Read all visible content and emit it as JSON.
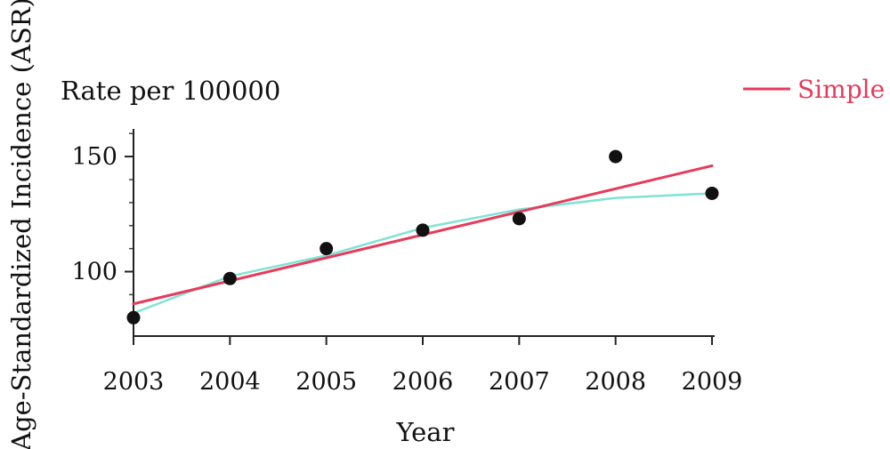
{
  "chart_data": {
    "type": "scatter",
    "subtitle": "Rate per 100000",
    "xlabel": "Year",
    "ylabel": "Age-Standardized Incidence (ASR)",
    "x": [
      2003,
      2004,
      2005,
      2006,
      2007,
      2008,
      2009
    ],
    "xlim": [
      2003,
      2009
    ],
    "ylim": [
      72,
      162
    ],
    "y_ticks": [
      100,
      150
    ],
    "x_tick_labels": [
      "2003",
      "2004",
      "2005",
      "2006",
      "2007",
      "2008",
      "2009"
    ],
    "y_tick_labels": [
      "100",
      "150"
    ],
    "points": [
      80,
      97,
      110,
      118,
      123,
      150,
      134
    ],
    "series": [
      {
        "name": "Simple",
        "color": "#e83a5a",
        "x": [
          2003,
          2009
        ],
        "values": [
          86,
          146
        ]
      },
      {
        "color": "#7fe3d4",
        "x": [
          2003,
          2004,
          2005,
          2006,
          2007,
          2008,
          2009
        ],
        "values": [
          82,
          98,
          107,
          119,
          127,
          132,
          134
        ]
      }
    ],
    "point_color": "#111111",
    "legend_position": "top-right"
  }
}
